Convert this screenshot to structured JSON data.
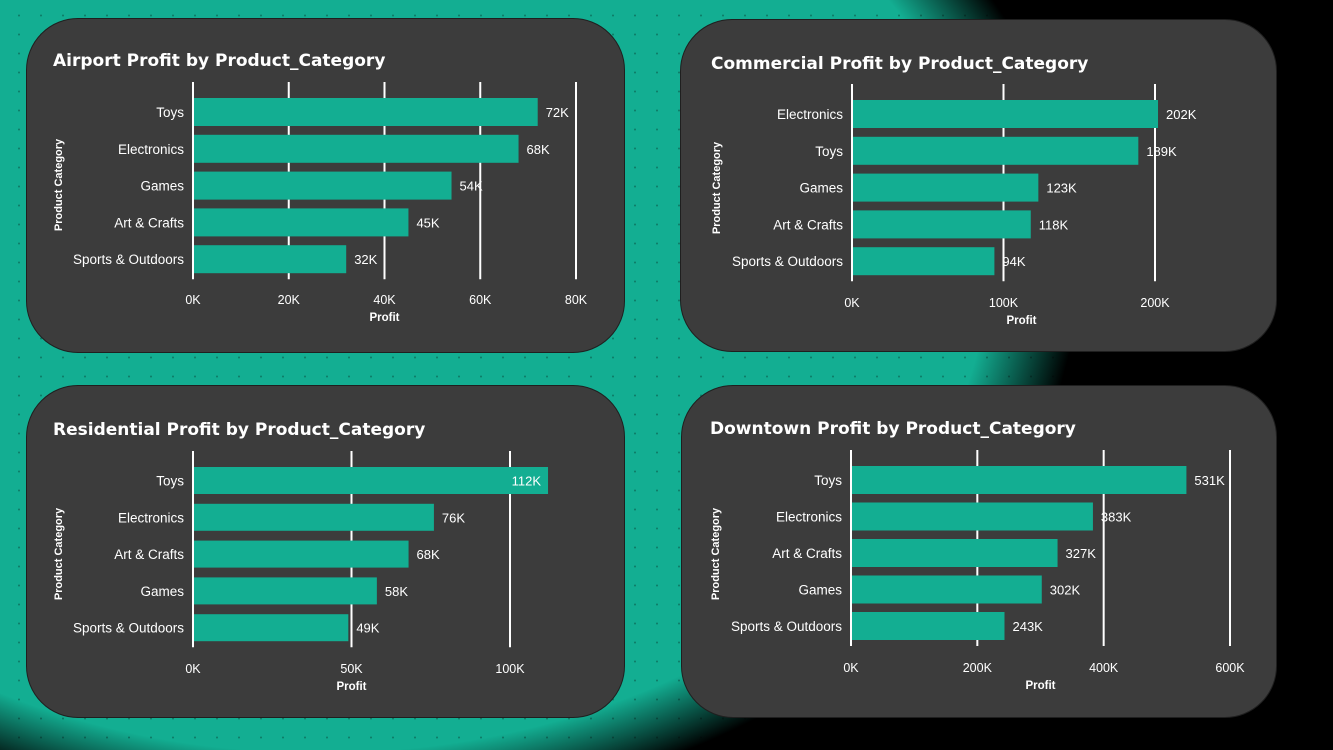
{
  "theme": {
    "accent": "#13ae92",
    "card": "#3c3c3c",
    "text": "#ffffff",
    "gridline": "#ffffff",
    "background": "#000000"
  },
  "chart_data": [
    {
      "type": "bar",
      "orientation": "horizontal",
      "title": "Airport Profit by Product_Category",
      "xlabel": "Profit",
      "ylabel": "Product Category",
      "categories": [
        "Toys",
        "Electronics",
        "Games",
        "Art & Crafts",
        "Sports & Outdoors"
      ],
      "values": [
        72000,
        68000,
        54000,
        45000,
        32000
      ],
      "data_labels": [
        "72K",
        "68K",
        "54K",
        "45K",
        "32K"
      ],
      "xticks": [
        0,
        20000,
        40000,
        60000,
        80000
      ],
      "xtick_labels": [
        "0K",
        "20K",
        "40K",
        "60K",
        "80K"
      ],
      "xlim": [
        0,
        80000
      ],
      "grid": true
    },
    {
      "type": "bar",
      "orientation": "horizontal",
      "title": "Commercial Profit by Product_Category",
      "xlabel": "Profit",
      "ylabel": "Product Category",
      "categories": [
        "Electronics",
        "Toys",
        "Games",
        "Art & Crafts",
        "Sports & Outdoors"
      ],
      "values": [
        202000,
        189000,
        123000,
        118000,
        94000
      ],
      "data_labels": [
        "202K",
        "189K",
        "123K",
        "118K",
        "94K"
      ],
      "xticks": [
        0,
        100000,
        200000
      ],
      "xtick_labels": [
        "0K",
        "100K",
        "200K"
      ],
      "xlim": [
        0,
        200000
      ],
      "grid": true
    },
    {
      "type": "bar",
      "orientation": "horizontal",
      "title": "Residential Profit by Product_Category",
      "xlabel": "Profit",
      "ylabel": "Product Category",
      "categories": [
        "Toys",
        "Electronics",
        "Art & Crafts",
        "Games",
        "Sports & Outdoors"
      ],
      "values": [
        112000,
        76000,
        68000,
        58000,
        49000
      ],
      "data_labels": [
        "112K",
        "76K",
        "68K",
        "58K",
        "49K"
      ],
      "xticks": [
        0,
        50000,
        100000
      ],
      "xtick_labels": [
        "0K",
        "50K",
        "100K"
      ],
      "xlim": [
        0,
        100000
      ],
      "grid": true
    },
    {
      "type": "bar",
      "orientation": "horizontal",
      "title": "Downtown Profit by Product_Category",
      "xlabel": "Profit",
      "ylabel": "Product Category",
      "categories": [
        "Toys",
        "Electronics",
        "Art & Crafts",
        "Games",
        "Sports & Outdoors"
      ],
      "values": [
        531000,
        383000,
        327000,
        302000,
        243000
      ],
      "data_labels": [
        "531K",
        "383K",
        "327K",
        "302K",
        "243K"
      ],
      "xticks": [
        0,
        200000,
        400000,
        600000
      ],
      "xtick_labels": [
        "0K",
        "200K",
        "400K",
        "600K"
      ],
      "xlim": [
        0,
        600000
      ],
      "grid": true
    }
  ]
}
